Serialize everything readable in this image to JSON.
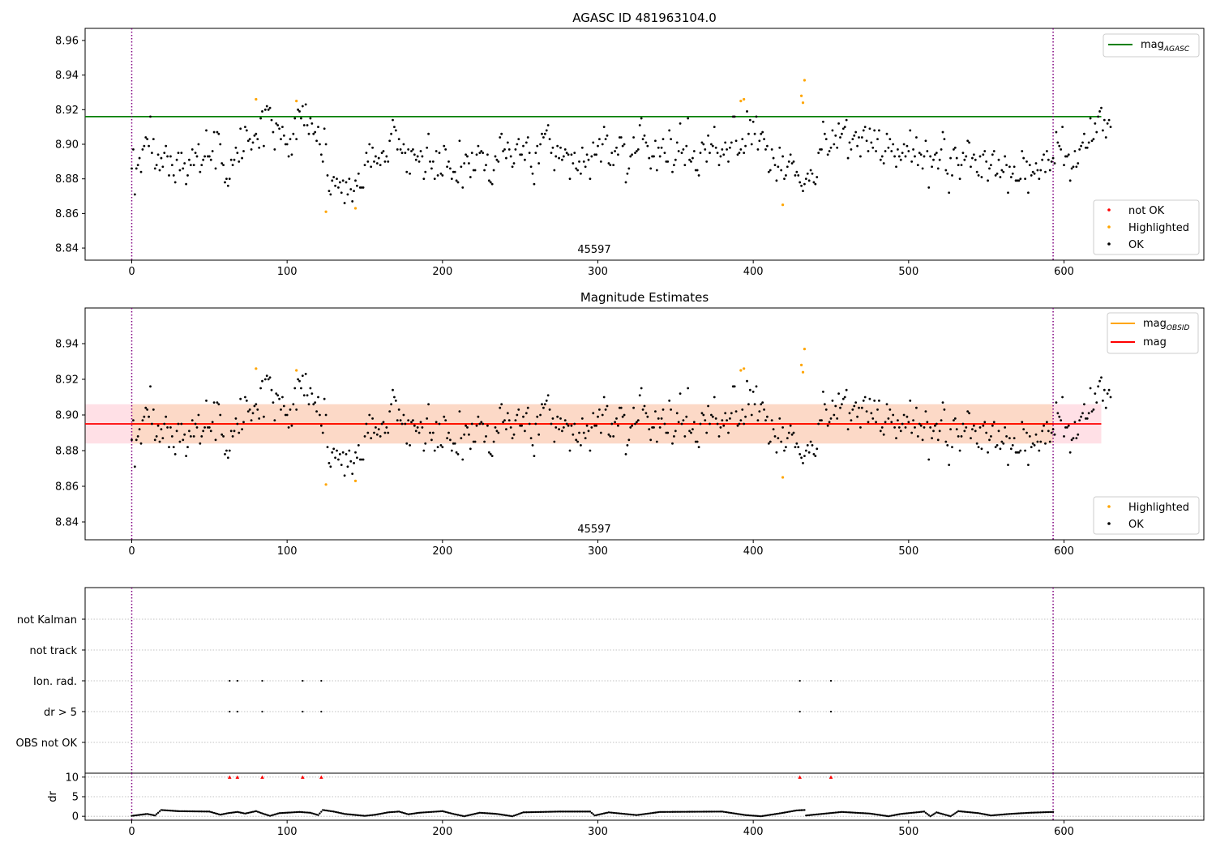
{
  "colors": {
    "ok": "#000000",
    "highlighted": "#ffa500",
    "not_ok": "#ff0000",
    "mag_agasc": "#008000",
    "mag_obsid": "#ffa500",
    "mag": "#ff0000",
    "band": "#fcd9c7",
    "band_outer": "#ffe0e6",
    "obs_boundary": "#800080",
    "grid": "#b0b0b0"
  },
  "chart_data": [
    {
      "type": "scatter",
      "title": "AGASC ID 481963104.0",
      "xlim": [
        -30,
        690
      ],
      "ylim": [
        8.833,
        8.967
      ],
      "xticks": [
        0,
        100,
        200,
        300,
        400,
        500,
        600
      ],
      "yticks": [
        8.84,
        8.86,
        8.88,
        8.9,
        8.92,
        8.94,
        8.96
      ],
      "obs_label": "45597",
      "obs_boundaries": [
        0,
        593
      ],
      "reference_line": {
        "name": "mag_AGASC",
        "y": 8.916,
        "x_range": [
          -30,
          624
        ]
      },
      "legend_upper": [
        {
          "label": "mag",
          "sub": "AGASC",
          "color": "#008000"
        }
      ],
      "legend_lower": [
        {
          "label": "not OK",
          "color": "#ff0000"
        },
        {
          "label": "Highlighted",
          "color": "#ffa500"
        },
        {
          "label": "OK",
          "color": "#000000"
        }
      ],
      "highlighted": {
        "x": [
          80,
          106,
          125,
          144,
          392,
          394,
          419,
          431,
          432,
          433
        ],
        "y": [
          8.926,
          8.925,
          8.861,
          8.863,
          8.925,
          8.926,
          8.865,
          8.928,
          8.924,
          8.937
        ]
      },
      "ok_series": "magnitudes_ok"
    },
    {
      "type": "scatter",
      "title": "Magnitude Estimates",
      "xlim": [
        -30,
        690
      ],
      "ylim": [
        8.83,
        8.96
      ],
      "xticks": [
        0,
        100,
        200,
        300,
        400,
        500,
        600
      ],
      "yticks": [
        8.84,
        8.86,
        8.88,
        8.9,
        8.92,
        8.94
      ],
      "obs_label": "45597",
      "obs_boundaries": [
        0,
        593
      ],
      "mag_line": {
        "y": 8.895,
        "x_range": [
          -30,
          624
        ]
      },
      "mag_obsid_line": {
        "y": 8.895,
        "x_range": [
          0,
          593
        ]
      },
      "band": {
        "y_low": 8.884,
        "y_high": 8.906,
        "x_range": [
          -30,
          624
        ]
      },
      "legend_upper": [
        {
          "label": "mag",
          "sub": "OBSID",
          "color": "#ffa500"
        },
        {
          "label": "mag",
          "sub": "",
          "color": "#ff0000"
        }
      ],
      "legend_lower": [
        {
          "label": "Highlighted",
          "color": "#ffa500"
        },
        {
          "label": "OK",
          "color": "#000000"
        }
      ],
      "highlighted": {
        "x": [
          80,
          106,
          125,
          144,
          392,
          394,
          419,
          431,
          432,
          433
        ],
        "y": [
          8.926,
          8.925,
          8.861,
          8.863,
          8.925,
          8.926,
          8.865,
          8.928,
          8.924,
          8.937
        ]
      },
      "ok_series": "magnitudes_ok"
    },
    {
      "type": "scatter",
      "title": "",
      "xlim": [
        -30,
        690
      ],
      "categories": [
        "not Kalman",
        "not track",
        "Ion. rad.",
        "dr > 5",
        "OBS not OK"
      ],
      "obs_boundaries": [
        0,
        593
      ],
      "flags": {
        "Ion. rad.": [
          63,
          68,
          84,
          110,
          122,
          430,
          450
        ],
        "dr > 5": [
          63,
          68,
          84,
          110,
          122,
          430,
          450
        ]
      }
    },
    {
      "type": "scatter",
      "title": "",
      "xlim": [
        -30,
        690
      ],
      "ylim": [
        -1,
        11
      ],
      "ylabel": "dr",
      "xticks": [
        0,
        100,
        200,
        300,
        400,
        500,
        600
      ],
      "yticks": [
        0,
        5,
        10
      ],
      "obs_boundaries": [
        0,
        593
      ],
      "dr_clipped": {
        "x": [
          63,
          68,
          84,
          110,
          122,
          430,
          450
        ],
        "y": [
          10,
          10,
          10,
          10,
          10,
          10,
          10
        ]
      },
      "dr_segments": [
        [
          0,
          0.1
        ],
        [
          10,
          0.6
        ],
        [
          15,
          0.2
        ],
        [
          19,
          1.6
        ],
        [
          30,
          1.3
        ],
        [
          50,
          1.2
        ],
        [
          57,
          0.4
        ],
        [
          62,
          0.8
        ],
        [
          68,
          1.1
        ],
        [
          73,
          0.7
        ],
        [
          80,
          1.3
        ],
        [
          85,
          0.6
        ],
        [
          89,
          0.1
        ],
        [
          95,
          0.8
        ],
        [
          108,
          1.1
        ],
        [
          115,
          0.9
        ],
        [
          120,
          0.3
        ],
        [
          123,
          1.6
        ],
        [
          130,
          1.2
        ],
        [
          137,
          0.6
        ],
        [
          150,
          0.1
        ],
        [
          157,
          0.4
        ],
        [
          165,
          1.0
        ],
        [
          172,
          1.2
        ],
        [
          178,
          0.5
        ],
        [
          185,
          0.9
        ],
        [
          200,
          1.3
        ],
        [
          207,
          0.6
        ],
        [
          214,
          0.0
        ],
        [
          224,
          0.9
        ],
        [
          235,
          0.6
        ],
        [
          245,
          0.0
        ],
        [
          252,
          1.0
        ],
        [
          275,
          1.2
        ],
        [
          295,
          1.2
        ],
        [
          298,
          0.2
        ],
        [
          307,
          1.0
        ],
        [
          325,
          0.3
        ],
        [
          340,
          1.1
        ],
        [
          380,
          1.2
        ],
        [
          395,
          0.3
        ],
        [
          405,
          0.0
        ],
        [
          418,
          0.8
        ],
        [
          428,
          1.5
        ],
        [
          433,
          1.6
        ],
        [
          434,
          0.2
        ],
        [
          444,
          0.6
        ],
        [
          457,
          1.1
        ],
        [
          475,
          0.7
        ],
        [
          487,
          0.0
        ],
        [
          495,
          0.6
        ],
        [
          510,
          1.2
        ],
        [
          514,
          0.0
        ],
        [
          518,
          1.0
        ],
        [
          527,
          0.0
        ],
        [
          532,
          1.3
        ],
        [
          545,
          0.8
        ],
        [
          553,
          0.2
        ],
        [
          565,
          0.6
        ],
        [
          578,
          0.9
        ],
        [
          593,
          1.1
        ]
      ]
    }
  ],
  "magnitudes_ok": {
    "y": [
      8.886,
      8.897,
      8.871,
      8.886,
      8.888,
      8.892,
      8.884,
      8.897,
      8.899,
      8.904,
      8.903,
      8.899,
      8.916,
      8.895,
      8.903,
      8.886,
      8.888,
      8.894,
      8.885,
      8.892,
      8.887,
      8.895,
      8.899,
      8.893,
      8.882,
      8.893,
      8.888,
      8.882,
      8.878,
      8.891,
      8.895,
      8.885,
      8.895,
      8.886,
      8.889,
      8.877,
      8.882,
      8.891,
      8.888,
      8.897,
      8.888,
      8.895,
      8.893,
      8.9,
      8.884,
      8.888,
      8.891,
      8.893,
      8.908,
      8.893,
      8.893,
      8.891,
      8.896,
      8.907,
      8.886,
      8.907,
      8.906,
      8.9,
      8.889,
      8.888,
      8.878,
      8.88,
      8.876,
      8.88,
      8.891,
      8.888,
      8.891,
      8.898,
      8.895,
      8.89,
      8.909,
      8.892,
      8.896,
      8.91,
      8.908,
      8.902,
      8.903,
      8.897,
      8.901,
      8.905,
      8.906,
      8.903,
      8.898,
      8.915,
      8.919,
      8.899,
      8.92,
      8.922,
      8.92,
      8.921,
      8.914,
      8.907,
      8.897,
      8.912,
      8.911,
      8.909,
      8.903,
      8.91,
      8.905,
      8.9,
      8.9,
      8.893,
      8.903,
      8.894,
      8.906,
      8.915,
      8.903,
      8.92,
      8.919,
      8.915,
      8.922,
      8.911,
      8.923,
      8.911,
      8.906,
      8.915,
      8.912,
      8.906,
      8.907,
      8.902,
      8.91,
      8.9,
      8.894,
      8.89,
      8.909,
      8.9,
      8.882,
      8.873,
      8.871,
      8.879,
      8.881,
      8.876,
      8.88,
      8.875,
      8.878,
      8.872,
      8.879,
      8.866,
      8.878,
      8.871,
      8.88,
      8.874,
      8.867,
      8.873,
      8.879,
      8.876,
      8.883,
      8.875,
      8.875,
      8.875,
      8.888,
      8.895,
      8.89,
      8.9,
      8.887,
      8.898,
      8.89,
      8.893,
      8.889,
      8.892,
      8.888,
      8.895,
      8.896,
      8.89,
      8.893,
      8.89,
      8.902,
      8.906,
      8.914,
      8.91,
      8.908,
      8.897,
      8.903,
      8.897,
      8.895,
      8.9,
      8.895,
      8.884,
      8.897,
      8.883,
      8.896,
      8.897,
      8.894,
      8.891,
      8.893,
      8.89,
      8.896,
      8.893,
      8.88,
      8.884,
      8.898,
      8.906,
      8.89,
      8.886,
      8.89,
      8.88,
      8.896,
      8.882,
      8.895,
      8.883,
      8.882,
      8.899,
      8.897,
      8.887,
      8.89,
      8.886,
      8.88,
      8.884,
      8.884,
      8.879,
      8.878,
      8.902,
      8.887,
      8.875,
      8.889,
      8.894,
      8.893,
      8.889,
      8.881,
      8.895,
      8.885,
      8.885,
      8.894,
      8.899,
      8.895,
      8.896,
      8.895,
      8.885,
      8.888,
      8.894,
      8.879,
      8.878,
      8.877,
      8.885,
      8.893,
      8.891,
      8.89,
      8.904,
      8.906,
      8.896,
      8.897,
      8.892,
      8.901,
      8.897,
      8.893,
      8.887,
      8.889,
      8.897,
      8.9,
      8.903,
      8.894,
      8.894,
      8.899,
      8.891,
      8.901,
      8.904,
      8.895,
      8.887,
      8.883,
      8.877,
      8.895,
      8.899,
      8.889,
      8.9,
      8.906,
      8.904,
      8.906,
      8.908,
      8.911,
      8.903,
      8.895,
      8.898,
      8.885,
      8.893,
      8.899,
      8.892,
      8.898,
      8.891,
      8.893,
      8.897,
      8.895,
      8.894,
      8.88,
      8.894,
      8.889,
      8.895,
      8.886,
      8.885,
      8.89,
      8.883,
      8.898,
      8.89,
      8.887,
      8.894,
      8.891,
      8.88,
      8.893,
      8.901,
      8.894,
      8.894,
      8.899,
      8.903,
      8.89,
      8.9,
      8.91,
      8.903,
      8.905,
      8.889,
      8.888,
      8.895,
      8.888,
      8.896,
      8.898,
      8.894,
      8.904,
      8.904,
      8.899,
      8.9,
      8.878,
      8.883,
      8.886,
      8.893,
      8.894,
      8.904,
      8.895,
      8.896,
      8.897,
      8.911,
      8.915,
      8.903,
      8.905,
      8.901,
      8.899,
      8.892,
      8.886,
      8.893,
      8.893,
      8.902,
      8.885,
      8.898,
      8.893,
      8.898,
      8.903,
      8.895,
      8.89,
      8.89,
      8.908,
      8.903,
      8.884,
      8.888,
      8.891,
      8.901,
      8.896,
      8.912,
      8.895,
      8.897,
      8.888,
      8.899,
      8.915,
      8.891,
      8.89,
      8.892,
      8.896,
      8.885,
      8.885,
      8.882,
      8.895,
      8.901,
      8.9,
      8.897,
      8.89,
      8.905,
      8.895,
      8.9,
      8.899,
      8.91,
      8.898,
      8.895,
      8.888,
      8.893,
      8.897,
      8.894,
      8.901,
      8.897,
      8.89,
      8.898,
      8.901,
      8.916,
      8.916,
      8.902,
      8.894,
      8.895,
      8.897,
      8.903,
      8.895,
      8.899,
      8.919,
      8.906,
      8.914,
      8.9,
      8.913,
      8.906,
      8.916,
      8.897,
      8.902,
      8.906,
      8.907,
      8.903,
      8.897,
      8.899,
      8.884,
      8.885,
      8.897,
      8.892,
      8.888,
      8.879,
      8.887,
      8.898,
      8.885,
      8.893,
      8.88,
      8.882,
      8.887,
      8.89,
      8.894,
      8.889,
      8.89,
      8.882,
      8.884,
      8.882,
      8.878,
      8.876,
      8.873,
      8.877,
      8.88,
      8.883,
      8.879,
      8.885,
      8.883,
      8.878,
      8.877,
      8.881,
      8.895,
      8.897,
      8.897,
      8.913,
      8.906,
      8.903,
      8.894,
      8.896,
      8.898,
      8.908,
      8.9,
      8.905,
      8.898,
      8.912,
      8.904,
      8.906,
      8.909,
      8.91,
      8.914,
      8.892,
      8.901,
      8.897,
      8.903,
      8.905,
      8.907,
      8.899,
      8.904,
      8.893,
      8.904,
      8.908,
      8.91,
      8.902,
      8.896,
      8.909,
      8.901,
      8.898,
      8.908,
      8.896,
      8.903,
      8.908,
      8.891,
      8.893,
      8.889,
      8.896,
      8.906,
      8.898,
      8.903,
      8.896,
      8.9,
      8.893,
      8.887,
      8.897,
      8.893,
      8.891,
      8.895,
      8.9,
      8.893,
      8.899,
      8.896,
      8.908,
      8.89,
      8.897,
      8.893,
      8.904,
      8.888,
      8.895,
      8.894,
      8.886,
      8.893,
      8.902,
      8.896,
      8.875,
      8.893,
      8.887,
      8.891,
      8.894,
      8.895,
      8.886,
      8.891,
      8.897,
      8.907,
      8.903,
      8.885,
      8.883,
      8.872,
      8.892,
      8.882,
      8.897,
      8.898,
      8.892,
      8.888,
      8.88,
      8.888,
      8.895,
      8.891,
      8.893,
      8.902,
      8.901,
      8.887,
      8.892,
      8.894,
      8.891,
      8.884,
      8.882,
      8.893,
      8.881,
      8.894,
      8.896,
      8.89,
      8.879,
      8.886,
      8.888,
      8.894,
      8.896,
      8.882,
      8.883,
      8.891,
      8.881,
      8.885,
      8.884,
      8.893,
      8.888,
      8.872,
      8.887,
      8.881,
      8.883,
      8.887,
      8.879,
      8.879,
      8.879,
      8.88,
      8.896,
      8.892,
      8.88,
      8.89,
      8.872,
      8.888,
      8.882,
      8.884,
      8.883,
      8.889,
      8.885,
      8.88,
      8.885,
      8.891,
      8.894,
      8.884,
      8.896,
      8.891,
      8.885,
      8.89,
      8.892,
      8.889,
      8.907,
      8.901,
      8.899,
      8.897,
      8.91,
      8.888,
      8.893,
      8.893,
      8.894,
      8.879,
      8.886,
      8.887,
      8.896,
      8.887,
      8.889,
      8.897,
      8.899,
      8.901,
      8.906,
      8.898,
      8.898,
      8.901,
      8.915,
      8.902,
      8.903,
      8.912,
      8.907,
      8.916,
      8.919,
      8.921,
      8.908,
      8.914,
      8.904,
      8.912,
      8.914,
      8.91
    ],
    "x_start": 0,
    "x_step": 1
  }
}
